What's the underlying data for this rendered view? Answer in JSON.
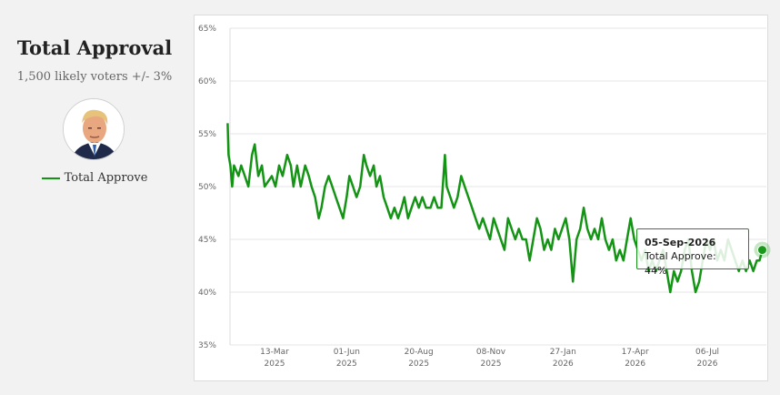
{
  "panel": {
    "title": "Total Approval",
    "subtitle": "1,500 likely voters +/- 3%",
    "legend_label": "Total Approve",
    "avatar_icon": "person-portrait-icon"
  },
  "colors": {
    "line": "#149414",
    "marker": "#1a9a1a",
    "background": "#f2f2f2",
    "grid": "#e6e6e6"
  },
  "tooltip": {
    "date": "05-Sep-2026",
    "label": "Total Approve: 44%"
  },
  "chart_data": {
    "type": "line",
    "title": "",
    "xlabel": "",
    "ylabel": "",
    "ylim": [
      35,
      65
    ],
    "yticks": [
      35,
      40,
      45,
      50,
      55,
      60,
      65
    ],
    "ytick_labels": [
      "35%",
      "40%",
      "45%",
      "50%",
      "55%",
      "60%",
      "65%"
    ],
    "xtick_dates": [
      "2025-03-13",
      "2025-06-01",
      "2025-08-20",
      "2025-11-08",
      "2026-01-27",
      "2026-04-17",
      "2026-07-06"
    ],
    "xtick_labels": [
      [
        "13-Mar",
        "2025"
      ],
      [
        "01-Jun",
        "2025"
      ],
      [
        "20-Aug",
        "2025"
      ],
      [
        "08-Nov",
        "2025"
      ],
      [
        "27-Jan",
        "2026"
      ],
      [
        "17-Apr",
        "2026"
      ],
      [
        "06-Jul",
        "2026"
      ]
    ],
    "grid": true,
    "legend": "left",
    "series": [
      {
        "name": "Total Approve",
        "points": [
          [
            "2025-01-20",
            56
          ],
          [
            "2025-01-21",
            53
          ],
          [
            "2025-01-23",
            52
          ],
          [
            "2025-01-25",
            50
          ],
          [
            "2025-01-27",
            52
          ],
          [
            "2025-02-01",
            51
          ],
          [
            "2025-02-04",
            52
          ],
          [
            "2025-02-08",
            51
          ],
          [
            "2025-02-12",
            50
          ],
          [
            "2025-02-16",
            53
          ],
          [
            "2025-02-19",
            54
          ],
          [
            "2025-02-23",
            51
          ],
          [
            "2025-02-27",
            52
          ],
          [
            "2025-03-02",
            50
          ],
          [
            "2025-03-10",
            51
          ],
          [
            "2025-03-14",
            50
          ],
          [
            "2025-03-18",
            52
          ],
          [
            "2025-03-22",
            51
          ],
          [
            "2025-03-27",
            53
          ],
          [
            "2025-03-31",
            52
          ],
          [
            "2025-04-03",
            50
          ],
          [
            "2025-04-07",
            52
          ],
          [
            "2025-04-11",
            50
          ],
          [
            "2025-04-16",
            52
          ],
          [
            "2025-04-20",
            51
          ],
          [
            "2025-04-23",
            50
          ],
          [
            "2025-04-27",
            49
          ],
          [
            "2025-05-01",
            47
          ],
          [
            "2025-05-04",
            48
          ],
          [
            "2025-05-08",
            50
          ],
          [
            "2025-05-12",
            51
          ],
          [
            "2025-05-16",
            50
          ],
          [
            "2025-05-20",
            49
          ],
          [
            "2025-05-24",
            48
          ],
          [
            "2025-05-28",
            47
          ],
          [
            "2025-06-01",
            49
          ],
          [
            "2025-06-04",
            51
          ],
          [
            "2025-06-08",
            50
          ],
          [
            "2025-06-12",
            49
          ],
          [
            "2025-06-16",
            50
          ],
          [
            "2025-06-20",
            53
          ],
          [
            "2025-06-23",
            52
          ],
          [
            "2025-06-27",
            51
          ],
          [
            "2025-07-01",
            52
          ],
          [
            "2025-07-04",
            50
          ],
          [
            "2025-07-08",
            51
          ],
          [
            "2025-07-12",
            49
          ],
          [
            "2025-07-16",
            48
          ],
          [
            "2025-07-20",
            47
          ],
          [
            "2025-07-24",
            48
          ],
          [
            "2025-07-28",
            47
          ],
          [
            "2025-08-01",
            48
          ],
          [
            "2025-08-04",
            49
          ],
          [
            "2025-08-08",
            47
          ],
          [
            "2025-08-12",
            48
          ],
          [
            "2025-08-16",
            49
          ],
          [
            "2025-08-20",
            48
          ],
          [
            "2025-08-24",
            49
          ],
          [
            "2025-08-28",
            48
          ],
          [
            "2025-09-02",
            48
          ],
          [
            "2025-09-06",
            49
          ],
          [
            "2025-09-10",
            48
          ],
          [
            "2025-09-14",
            48
          ],
          [
            "2025-09-18",
            53
          ],
          [
            "2025-09-20",
            50
          ],
          [
            "2025-09-24",
            49
          ],
          [
            "2025-09-28",
            48
          ],
          [
            "2025-10-02",
            49
          ],
          [
            "2025-10-06",
            51
          ],
          [
            "2025-10-10",
            50
          ],
          [
            "2025-10-14",
            49
          ],
          [
            "2025-10-18",
            48
          ],
          [
            "2025-10-22",
            47
          ],
          [
            "2025-10-26",
            46
          ],
          [
            "2025-10-30",
            47
          ],
          [
            "2025-11-03",
            46
          ],
          [
            "2025-11-07",
            45
          ],
          [
            "2025-11-11",
            47
          ],
          [
            "2025-11-15",
            46
          ],
          [
            "2025-11-19",
            45
          ],
          [
            "2025-11-23",
            44
          ],
          [
            "2025-11-27",
            47
          ],
          [
            "2025-12-01",
            46
          ],
          [
            "2025-12-05",
            45
          ],
          [
            "2025-12-09",
            46
          ],
          [
            "2025-12-13",
            45
          ],
          [
            "2025-12-17",
            45
          ],
          [
            "2025-12-21",
            43
          ],
          [
            "2025-12-25",
            45
          ],
          [
            "2025-12-29",
            47
          ],
          [
            "2026-01-02",
            46
          ],
          [
            "2026-01-06",
            44
          ],
          [
            "2026-01-10",
            45
          ],
          [
            "2026-01-14",
            44
          ],
          [
            "2026-01-18",
            46
          ],
          [
            "2026-01-22",
            45
          ],
          [
            "2026-01-26",
            46
          ],
          [
            "2026-01-30",
            47
          ],
          [
            "2026-02-03",
            45
          ],
          [
            "2026-02-07",
            41
          ],
          [
            "2026-02-11",
            45
          ],
          [
            "2026-02-15",
            46
          ],
          [
            "2026-02-19",
            48
          ],
          [
            "2026-02-23",
            46
          ],
          [
            "2026-02-27",
            45
          ],
          [
            "2026-03-03",
            46
          ],
          [
            "2026-03-07",
            45
          ],
          [
            "2026-03-11",
            47
          ],
          [
            "2026-03-15",
            45
          ],
          [
            "2026-03-19",
            44
          ],
          [
            "2026-03-23",
            45
          ],
          [
            "2026-03-27",
            43
          ],
          [
            "2026-03-31",
            44
          ],
          [
            "2026-04-04",
            43
          ],
          [
            "2026-04-08",
            45
          ],
          [
            "2026-04-12",
            47
          ],
          [
            "2026-04-16",
            45
          ],
          [
            "2026-04-20",
            44
          ],
          [
            "2026-04-24",
            43
          ],
          [
            "2026-04-28",
            44
          ],
          [
            "2026-05-02",
            42
          ],
          [
            "2026-05-06",
            43
          ],
          [
            "2026-05-10",
            42
          ],
          [
            "2026-05-14",
            43
          ],
          [
            "2026-05-18",
            44
          ],
          [
            "2026-05-22",
            42
          ],
          [
            "2026-05-26",
            40
          ],
          [
            "2026-05-30",
            42
          ],
          [
            "2026-06-03",
            41
          ],
          [
            "2026-06-07",
            42
          ],
          [
            "2026-06-11",
            44
          ],
          [
            "2026-06-15",
            45
          ],
          [
            "2026-06-19",
            42
          ],
          [
            "2026-06-23",
            40
          ],
          [
            "2026-06-27",
            41
          ],
          [
            "2026-07-01",
            43
          ],
          [
            "2026-07-05",
            45
          ],
          [
            "2026-07-09",
            44
          ],
          [
            "2026-07-13",
            45
          ],
          [
            "2026-07-17",
            43
          ],
          [
            "2026-07-21",
            44
          ],
          [
            "2026-07-25",
            43
          ],
          [
            "2026-07-29",
            45
          ],
          [
            "2026-08-02",
            44
          ],
          [
            "2026-08-06",
            43
          ],
          [
            "2026-08-10",
            42
          ],
          [
            "2026-08-14",
            43
          ],
          [
            "2026-08-18",
            42
          ],
          [
            "2026-08-22",
            43
          ],
          [
            "2026-08-26",
            42
          ],
          [
            "2026-08-30",
            43
          ],
          [
            "2026-09-02",
            43
          ],
          [
            "2026-09-05",
            44
          ]
        ]
      }
    ],
    "highlight": {
      "date": "2026-09-05",
      "value": 44
    }
  }
}
